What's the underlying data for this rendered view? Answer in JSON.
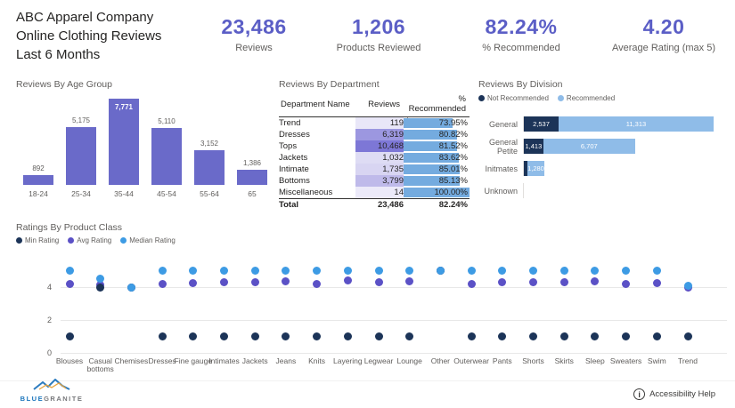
{
  "colors": {
    "kpi_value": "#5B5EC6",
    "bar_purple": "#6A6AC9",
    "avg_purple": "#5B51C6",
    "median_blue": "#3D9BE4",
    "min_navy": "#1C3458",
    "division_navy": "#1C3458",
    "division_blue": "#8FBCE8",
    "table_bar_blue": "#74ABDF",
    "title_gray": "#605E5C"
  },
  "header": {
    "title_line1": "ABC Apparel Company",
    "title_line2": "Online Clothing Reviews",
    "title_line3": "Last 6 Months",
    "kpis": [
      {
        "value": "23,486",
        "label": "Reviews"
      },
      {
        "value": "1,206",
        "label": "Products Reviewed"
      },
      {
        "value": "82.24%",
        "label": "% Recommended"
      },
      {
        "value": "4.20",
        "label": "Average Rating (max 5)"
      }
    ]
  },
  "dept_table": {
    "sort_icon": "▲"
  },
  "footer": {
    "brand_blue": "BLUE",
    "brand_gray": "GRANITE",
    "accessibility_label": "Accessibility Help",
    "info_icon": "i"
  },
  "chart_data": [
    {
      "type": "bar",
      "title": "Reviews By Age Group",
      "categories": [
        "18-24",
        "25-34",
        "35-44",
        "45-54",
        "55-64",
        "65"
      ],
      "values": [
        892,
        5175,
        7771,
        5110,
        3152,
        1386
      ],
      "labels": [
        "892",
        "5,175",
        "7,771",
        "5,110",
        "3,152",
        "1,386"
      ],
      "label_inside": [
        false,
        false,
        true,
        false,
        false,
        false
      ],
      "ylim": [
        0,
        7771
      ],
      "grid": false
    },
    {
      "type": "table",
      "title": "Reviews By Department",
      "columns": [
        "Department Name",
        "Reviews",
        "% Recommended"
      ],
      "rows": [
        {
          "name": "Trend",
          "reviews": "119",
          "reviews_bg": "#E9E7F8",
          "pct": "73.95%",
          "pct_value": 73.95
        },
        {
          "name": "Dresses",
          "reviews": "6,319",
          "reviews_bg": "#9C97E0",
          "pct": "80.82%",
          "pct_value": 80.82
        },
        {
          "name": "Tops",
          "reviews": "10,468",
          "reviews_bg": "#7D77D6",
          "pct": "81.52%",
          "pct_value": 81.52
        },
        {
          "name": "Jackets",
          "reviews": "1,032",
          "reviews_bg": "#DEDCF4",
          "pct": "83.62%",
          "pct_value": 83.62
        },
        {
          "name": "Intimate",
          "reviews": "1,735",
          "reviews_bg": "#D8D5F2",
          "pct": "85.01%",
          "pct_value": 85.01
        },
        {
          "name": "Bottoms",
          "reviews": "3,799",
          "reviews_bg": "#BFBAEA",
          "pct": "85.13%",
          "pct_value": 85.13
        },
        {
          "name": "Miscellaneous",
          "reviews": "14",
          "reviews_bg": "#ECEAF9",
          "pct": "100.00%",
          "pct_value": 100.0
        }
      ],
      "total": {
        "name": "Total",
        "reviews": "23,486",
        "pct": "82.24%"
      }
    },
    {
      "type": "bar",
      "orientation": "horizontal-stacked",
      "title": "Reviews By Division",
      "legend": [
        "Not Recommended",
        "Recommended"
      ],
      "categories": [
        "General",
        "General Petite",
        "Initmates",
        "Unknown"
      ],
      "xmax": 13850,
      "series": [
        {
          "name": "Not Recommended",
          "values": [
            2537,
            1413,
            236,
            0
          ],
          "labels": [
            "2,537",
            "1,413",
            "",
            ""
          ]
        },
        {
          "name": "Recommended",
          "values": [
            11313,
            6707,
            1280,
            0
          ],
          "labels": [
            "11,313",
            "6,707",
            "1,280",
            ""
          ]
        }
      ]
    },
    {
      "type": "scatter",
      "title": "Ratings By Product Class",
      "legend": [
        "Min Rating",
        "Avg Rating",
        "Median Rating"
      ],
      "yticks": [
        "4",
        "2",
        "0"
      ],
      "ylim": [
        0,
        5.5
      ],
      "categories": [
        "Blouses",
        "Casual bottoms",
        "Chemises",
        "Dresses",
        "Fine gauge",
        "Intimates",
        "Jackets",
        "Jeans",
        "Knits",
        "Layering",
        "Legwear",
        "Lounge",
        "Other",
        "Outerwear",
        "Pants",
        "Shorts",
        "Skirts",
        "Sleep",
        "Sweaters",
        "Swim",
        "Trend"
      ],
      "series": [
        {
          "name": "Min Rating",
          "values": [
            1,
            4,
            4,
            1,
            1,
            1,
            1,
            1,
            1,
            1,
            1,
            1,
            5,
            1,
            1,
            1,
            1,
            1,
            1,
            1,
            1
          ]
        },
        {
          "name": "Avg Rating",
          "values": [
            4.2,
            4.15,
            4.0,
            4.2,
            4.25,
            4.3,
            4.3,
            4.35,
            4.2,
            4.4,
            4.3,
            4.35,
            5.0,
            4.2,
            4.3,
            4.3,
            4.3,
            4.35,
            4.2,
            4.25,
            3.95
          ]
        },
        {
          "name": "Median Rating",
          "values": [
            5,
            4.5,
            4.0,
            5,
            5,
            5,
            5,
            5,
            5,
            5,
            5,
            5,
            5,
            5,
            5,
            5,
            5,
            5,
            5,
            5,
            4.1
          ]
        }
      ]
    }
  ]
}
